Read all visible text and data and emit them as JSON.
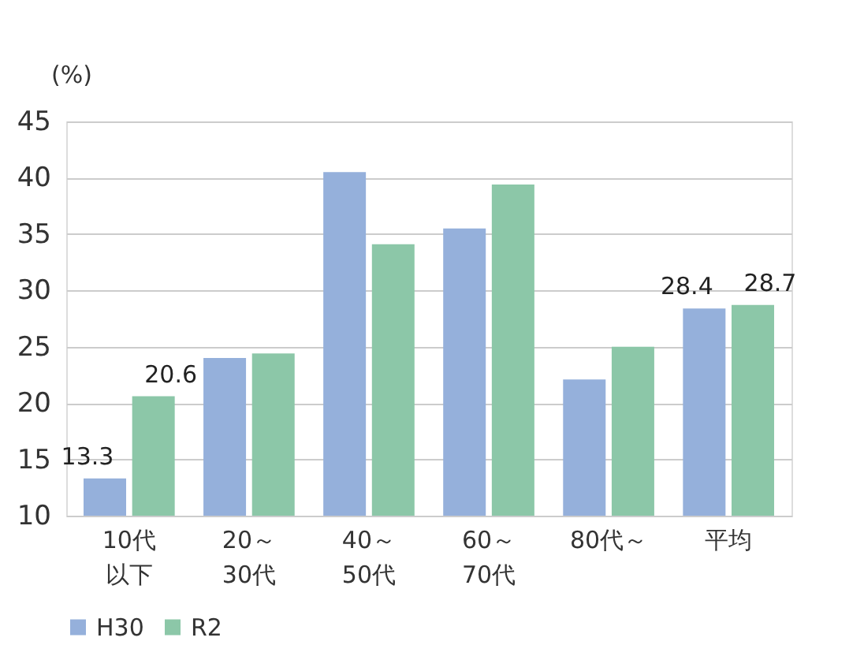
{
  "chart_data": {
    "type": "bar",
    "ylabel": "(%)",
    "categories": [
      "10代以下",
      "20～30代",
      "40～50代",
      "60～70代",
      "80代～",
      "平均"
    ],
    "series": [
      {
        "name": "H30",
        "color": "#95b0db",
        "values": [
          13.3,
          24.0,
          40.5,
          35.5,
          22.1,
          28.4
        ],
        "value_labels": [
          "13.3",
          null,
          null,
          null,
          null,
          "28.4"
        ]
      },
      {
        "name": "R2",
        "color": "#8cc7a8",
        "values": [
          20.6,
          24.4,
          34.1,
          39.4,
          25.0,
          28.7
        ],
        "value_labels": [
          "20.6",
          null,
          null,
          null,
          null,
          "28.7"
        ]
      }
    ],
    "ylim": [
      10,
      45
    ],
    "yticks": [
      10,
      15,
      20,
      25,
      30,
      35,
      40,
      45
    ],
    "grid": "y",
    "legend": "bottom"
  }
}
